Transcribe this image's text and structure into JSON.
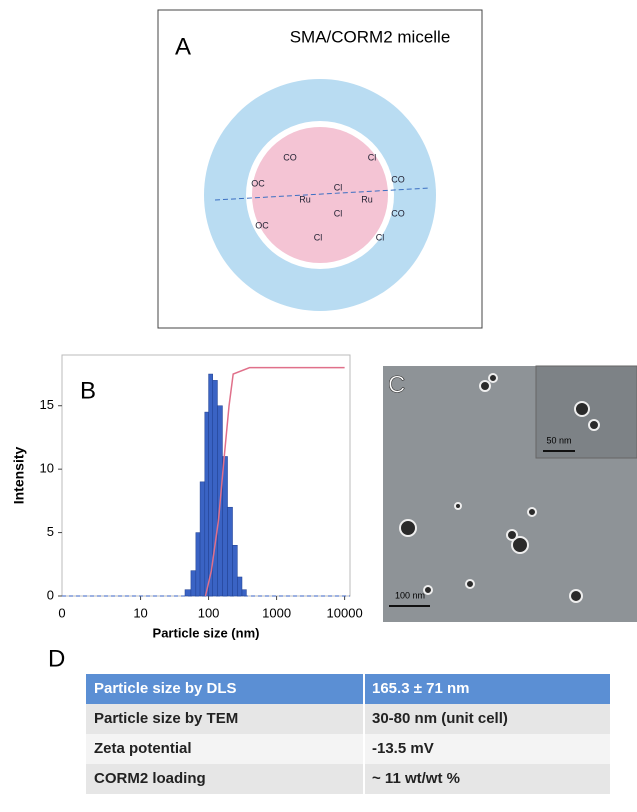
{
  "panel_a": {
    "label": "A",
    "title": "SMA/CORM2 micelle",
    "structure_labels": [
      "CO",
      "Cl",
      "OC",
      "CO",
      "Ru",
      "Cl",
      "Ru",
      "Cl",
      "OC",
      "CO",
      "Cl",
      "Cl"
    ]
  },
  "chart_data": {
    "type": "histogram",
    "panel_label": "B",
    "xlabel": "Particle size (nm)",
    "ylabel": "Intensity",
    "bins": [
      45,
      55,
      65,
      75,
      88,
      100,
      115,
      135,
      160,
      190,
      225,
      265,
      310,
      360
    ],
    "counts": [
      0.5,
      2,
      5,
      9,
      14.5,
      17.5,
      17,
      15,
      11,
      7,
      4,
      1.5,
      0.5
    ],
    "color": "#3a63c4",
    "cumulative": {
      "x": [
        90,
        110,
        140,
        170,
        200,
        230,
        400,
        1000,
        10000
      ],
      "values": [
        0,
        2,
        6,
        11,
        15,
        17.5,
        18,
        18,
        18
      ],
      "color": "#e0708a"
    },
    "log_x": true,
    "xlim": [
      0.7,
      12000
    ],
    "xticks": [
      10,
      100,
      1000,
      10000
    ],
    "x_start_label": "0",
    "ylim": [
      0,
      19
    ],
    "yticks": [
      0,
      5,
      10,
      15
    ]
  },
  "panel_c": {
    "label": "C",
    "inset_scale": "50 nm",
    "scale": "100 nm"
  },
  "panel_d": {
    "label": "D",
    "table": {
      "header": [
        "Particle size by DLS",
        "165.3 ± 71 nm"
      ],
      "rows": [
        [
          "Particle size by TEM",
          "30-80 nm (unit cell)"
        ],
        [
          "Zeta potential",
          "-13.5 mV"
        ],
        [
          "CORM2 loading",
          "~ 11 wt/wt %"
        ]
      ]
    }
  }
}
